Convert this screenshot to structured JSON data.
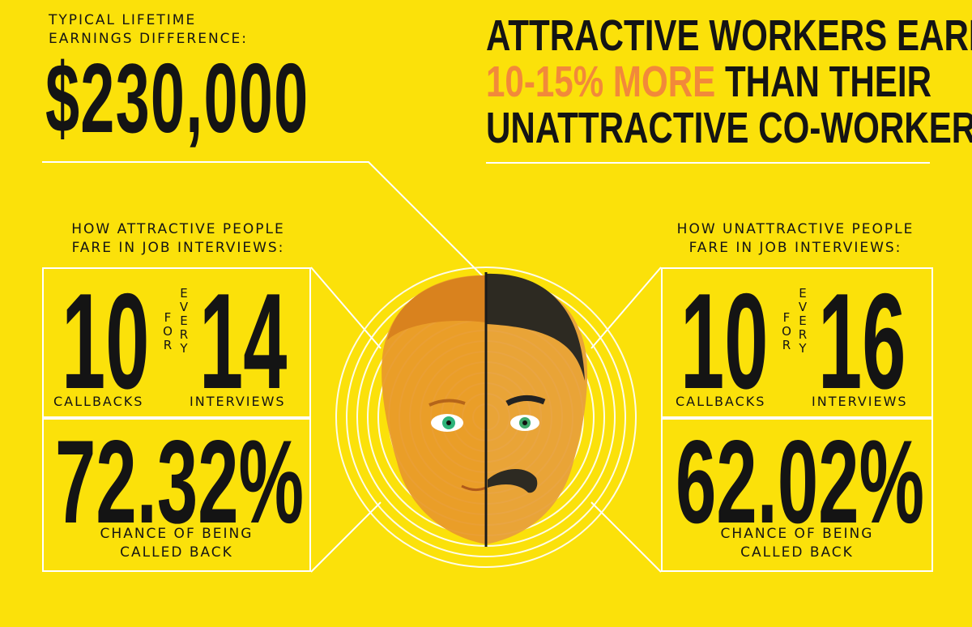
{
  "lifetime": {
    "label_line1": "TYPICAL LIFETIME",
    "label_line2": "EARNINGS DIFFERENCE:",
    "value": "$230,000"
  },
  "headline": {
    "line1": "ATTRACTIVE WORKERS EARN",
    "line2_accent": "10-15% MORE",
    "line2_rest": " THAN THEIR",
    "line3": "UNATTRACTIVE CO-WORKERS"
  },
  "attractive": {
    "label_line1": "HOW ATTRACTIVE PEOPLE",
    "label_line2": "FARE IN JOB INTERVIEWS:",
    "callbacks": "10",
    "interviews": "14",
    "connector_for": [
      "F",
      "O",
      "R"
    ],
    "connector_every": [
      "E",
      "V",
      "E",
      "R",
      "Y"
    ],
    "callbacks_label": "CALLBACKS",
    "interviews_label": "INTERVIEWS",
    "percent": "72.32%",
    "caption_line1": "CHANCE OF BEING",
    "caption_line2": "CALLED BACK"
  },
  "unattractive": {
    "label_line1": "HOW UNATTRACTIVE PEOPLE",
    "label_line2": "FARE IN JOB INTERVIEWS:",
    "callbacks": "10",
    "interviews": "16",
    "connector_for": [
      "F",
      "O",
      "R"
    ],
    "connector_every": [
      "E",
      "V",
      "E",
      "R",
      "Y"
    ],
    "callbacks_label": "CALLBACKS",
    "interviews_label": "INTERVIEWS",
    "percent": "62.02%",
    "caption_line1": "CHANCE OF BEING",
    "caption_line2": "CALLED BACK"
  },
  "colors": {
    "background": "#FBE10A",
    "text": "#141414",
    "accent": "#F2893A",
    "lines": "#FFFFFF"
  },
  "illustration": {
    "icon": "split-doll-head-icon"
  }
}
